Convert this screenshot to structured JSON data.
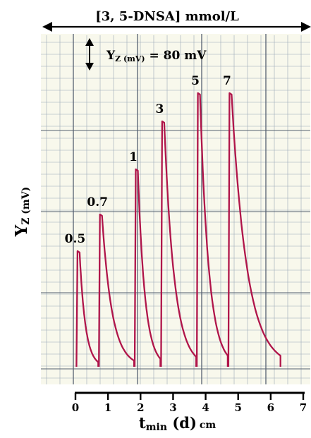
{
  "chart_data": {
    "type": "line",
    "title": "[3, 5-DNSA] mmol/L",
    "scale_bar": {
      "label_main": "Y",
      "label_sub": "Z (mV)",
      "label_rest": " = 80 mV"
    },
    "ylabel": {
      "main": "Y",
      "sub": "Z (mV)"
    },
    "xlabel": {
      "main": "t",
      "sub": "min",
      "rest": " (d)",
      "unit": "cm"
    },
    "xlim": [
      0,
      7
    ],
    "ylim": [
      0,
      100
    ],
    "x_ticks": [
      "0",
      "1",
      "2",
      "3",
      "4",
      "5",
      "6",
      "7"
    ],
    "grid": true,
    "line_color": "#b0154a",
    "grid_color": "#9aa8b8",
    "paper_color": "#f8f8ec",
    "baseline": 0,
    "peaks": [
      {
        "label": "0.5",
        "x": 0.03,
        "height": 41
      },
      {
        "label": "0.7",
        "x": 0.72,
        "height": 54
      },
      {
        "label": "1",
        "x": 1.82,
        "height": 70
      },
      {
        "label": "3",
        "x": 2.63,
        "height": 87
      },
      {
        "label": "5",
        "x": 3.73,
        "height": 97
      },
      {
        "label": "7",
        "x": 4.7,
        "height": 97
      }
    ]
  }
}
